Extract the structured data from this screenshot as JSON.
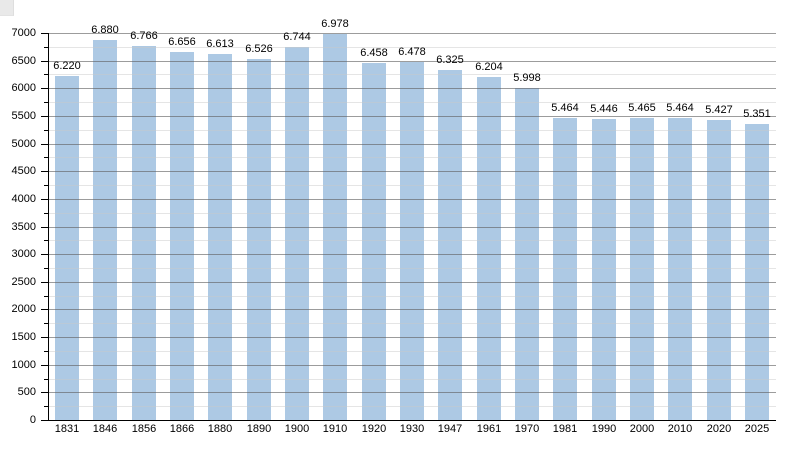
{
  "chart_data": {
    "type": "bar",
    "title": "",
    "xlabel": "",
    "ylabel": "",
    "categories": [
      "1831",
      "1846",
      "1856",
      "1866",
      "1880",
      "1890",
      "1900",
      "1910",
      "1920",
      "1930",
      "1947",
      "1961",
      "1970",
      "1981",
      "1990",
      "2000",
      "2010",
      "2020",
      "2025"
    ],
    "values": [
      6220,
      6880,
      6766,
      6656,
      6613,
      6526,
      6744,
      6978,
      6458,
      6478,
      6325,
      6204,
      5998,
      5464,
      5446,
      5465,
      5464,
      5427,
      5351
    ],
    "value_labels": [
      "6.220",
      "6.880",
      "6.766",
      "6.656",
      "6.613",
      "6.526",
      "6.744",
      "6.978",
      "6.458",
      "6.478",
      "6.325",
      "6.204",
      "5.998",
      "5.464",
      "5.446",
      "5.465",
      "5.464",
      "5.427",
      "5.351"
    ],
    "ylim": [
      0,
      7000
    ],
    "y_major_step": 500,
    "y_minor_step": 250,
    "y_tick_labels": [
      "0",
      "500",
      "1000",
      "1500",
      "2000",
      "2500",
      "3000",
      "3500",
      "4000",
      "4500",
      "5000",
      "5500",
      "6000",
      "6500",
      "7000"
    ],
    "grid": "horizontal major+minor",
    "legend_position": "none",
    "colors": {
      "bar": "#adc9e4",
      "grid_major": "#999999",
      "grid_minor": "#e3e3e3",
      "axis": "#000000",
      "text": "#000000",
      "background": "#ffffff"
    }
  }
}
